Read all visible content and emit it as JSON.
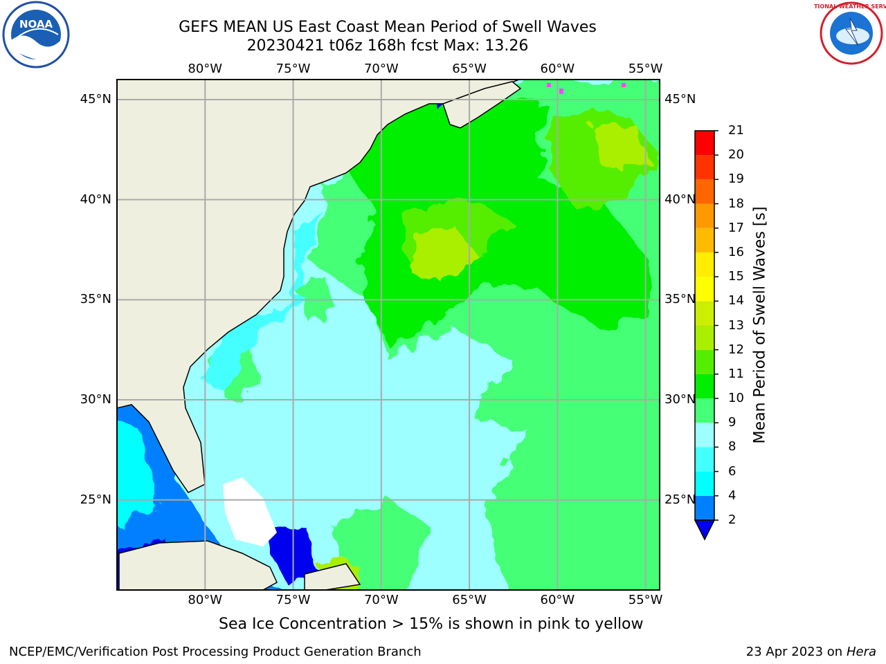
{
  "title_line1": "GEFS MEAN US East Coast Mean Period of Swell Waves",
  "title_line2": "20230421 t06z 168h fcst   Max: 13.26",
  "logos": {
    "left": "noaa-logo-icon",
    "right": "nws-logo-icon",
    "left_text": "NOAA",
    "right_text": "NATIONAL WEATHER SERVICE"
  },
  "map": {
    "projection": "plate-carree",
    "lon_range": [
      -85,
      -54.2
    ],
    "lat_range": [
      20.5,
      46
    ],
    "grid": true,
    "land_color": "#efefdf",
    "lon_ticks": [
      {
        "value": -80,
        "label": "80°W"
      },
      {
        "value": -75,
        "label": "75°W"
      },
      {
        "value": -70,
        "label": "70°W"
      },
      {
        "value": -65,
        "label": "65°W"
      },
      {
        "value": -60,
        "label": "60°W"
      },
      {
        "value": -55,
        "label": "55°W"
      }
    ],
    "lat_ticks": [
      {
        "value": 45,
        "label": "45°N"
      },
      {
        "value": 40,
        "label": "40°N"
      },
      {
        "value": 35,
        "label": "35°N"
      },
      {
        "value": 30,
        "label": "30°N"
      },
      {
        "value": 25,
        "label": "25°N"
      }
    ]
  },
  "colorbar": {
    "label": "Mean Period of Swell Waves [s]",
    "extend": "min",
    "levels": [
      2,
      4,
      6,
      8,
      9,
      10,
      11,
      12,
      13,
      14,
      15,
      16,
      17,
      18,
      19,
      20,
      21
    ],
    "colors": [
      "#0000ee",
      "#0080ff",
      "#00ffff",
      "#44ffff",
      "#9dffff",
      "#44ff77",
      "#00ee00",
      "#55ee00",
      "#aaee00",
      "#ccee00",
      "#ffff00",
      "#ffee00",
      "#ffbb00",
      "#ff9900",
      "#ff6600",
      "#ff3300",
      "#ff0000"
    ]
  },
  "footnote": "Sea Ice Concentration > 15% is shown in pink to yellow",
  "credit": "NCEP/EMC/Verification Post Processing Product Generation Branch",
  "date_prefix": "23 Apr 2023 on",
  "machine": "Hera"
}
